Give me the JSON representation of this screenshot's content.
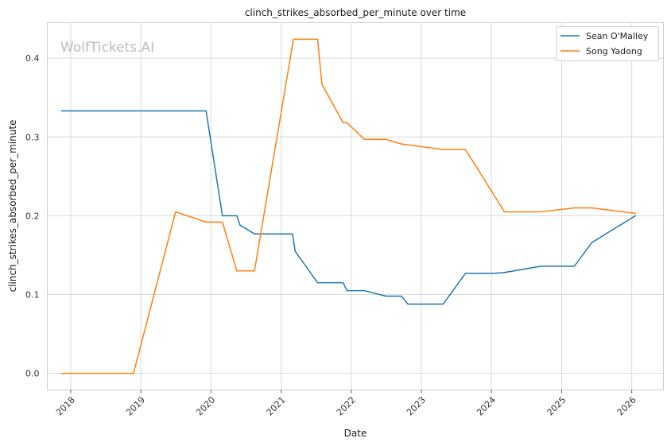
{
  "chart_data": {
    "type": "line",
    "title": "clinch_strikes_absorbed_per_minute over time",
    "xlabel": "Date",
    "ylabel": "clinch_strikes_absorbed_per_minute",
    "watermark": "WolfTickets.AI",
    "x_ticks": [
      "2018",
      "2019",
      "2020",
      "2021",
      "2022",
      "2023",
      "2024",
      "2025",
      "2026"
    ],
    "y_ticks": [
      "0.0",
      "0.1",
      "0.2",
      "0.3",
      "0.4"
    ],
    "xlim": [
      "2017-09-01",
      "2026-06-15"
    ],
    "ylim": [
      -0.021,
      0.445
    ],
    "grid": true,
    "legend_position": "top-right",
    "series": [
      {
        "name": "Sean O'Malley",
        "color": "#1f77b4",
        "points": [
          [
            "2017-11-15",
            0.333
          ],
          [
            "2019-12-07",
            0.333
          ],
          [
            "2020-03-01",
            0.2
          ],
          [
            "2020-05-15",
            0.2
          ],
          [
            "2020-06-01",
            0.188
          ],
          [
            "2020-08-15",
            0.177
          ],
          [
            "2021-02-01",
            0.177
          ],
          [
            "2021-03-01",
            0.177
          ],
          [
            "2021-03-15",
            0.155
          ],
          [
            "2021-07-10",
            0.115
          ],
          [
            "2021-11-20",
            0.115
          ],
          [
            "2021-12-10",
            0.105
          ],
          [
            "2022-03-10",
            0.105
          ],
          [
            "2022-07-01",
            0.098
          ],
          [
            "2022-09-20",
            0.098
          ],
          [
            "2022-10-22",
            0.088
          ],
          [
            "2023-04-25",
            0.088
          ],
          [
            "2023-08-19",
            0.127
          ],
          [
            "2024-01-15",
            0.127
          ],
          [
            "2024-03-09",
            0.128
          ],
          [
            "2024-09-14",
            0.136
          ],
          [
            "2025-03-08",
            0.136
          ],
          [
            "2025-06-07",
            0.166
          ],
          [
            "2026-01-20",
            0.2
          ]
        ]
      },
      {
        "name": "Song Yadong",
        "color": "#ff7f0e",
        "points": [
          [
            "2017-11-15",
            0.0
          ],
          [
            "2018-11-24",
            0.0
          ],
          [
            "2019-07-01",
            0.205
          ],
          [
            "2019-12-07",
            0.192
          ],
          [
            "2020-03-01",
            0.192
          ],
          [
            "2020-05-15",
            0.13
          ],
          [
            "2020-08-15",
            0.13
          ],
          [
            "2021-03-06",
            0.424
          ],
          [
            "2021-07-10",
            0.424
          ],
          [
            "2021-08-01",
            0.367
          ],
          [
            "2021-11-20",
            0.318
          ],
          [
            "2021-12-10",
            0.318
          ],
          [
            "2022-03-10",
            0.297
          ],
          [
            "2022-07-01",
            0.297
          ],
          [
            "2022-09-20",
            0.291
          ],
          [
            "2022-10-22",
            0.29
          ],
          [
            "2023-04-25",
            0.284
          ],
          [
            "2023-08-19",
            0.284
          ],
          [
            "2024-03-09",
            0.205
          ],
          [
            "2024-09-14",
            0.205
          ],
          [
            "2025-03-08",
            0.21
          ],
          [
            "2025-06-07",
            0.21
          ],
          [
            "2026-01-20",
            0.203
          ]
        ]
      }
    ]
  }
}
